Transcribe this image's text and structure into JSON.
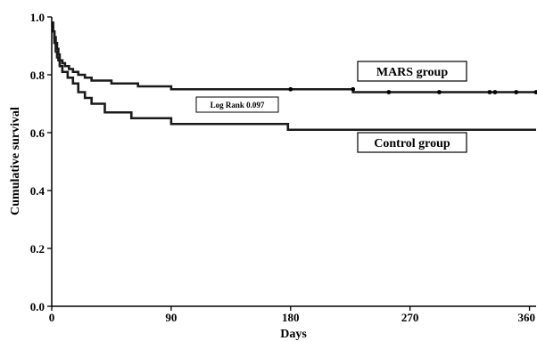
{
  "chart_data": {
    "type": "line",
    "subtype": "kaplan-meier-step",
    "xlabel": "Days",
    "ylabel": "Cumulative survival",
    "xlim": [
      0,
      365
    ],
    "ylim": [
      0,
      1.0
    ],
    "x_ticks": [
      0,
      90,
      180,
      270,
      360
    ],
    "y_ticks": [
      0.0,
      0.2,
      0.4,
      0.6,
      0.8,
      1.0
    ],
    "x_tick_labels": [
      "0",
      "90",
      "180",
      "270",
      "360"
    ],
    "y_tick_labels": [
      "0.0",
      "0.2",
      "0.4",
      "0.6",
      "0.8",
      "1.0"
    ],
    "grid": false,
    "annotation": "Log Rank 0.097",
    "series": [
      {
        "name": "MARS group",
        "color": "#1a1a1a",
        "x": [
          0,
          1,
          2,
          3,
          4,
          5,
          6,
          8,
          10,
          13,
          16,
          20,
          25,
          30,
          45,
          65,
          90,
          180,
          227,
          365
        ],
        "y": [
          0.98,
          0.95,
          0.93,
          0.91,
          0.89,
          0.87,
          0.85,
          0.84,
          0.83,
          0.82,
          0.81,
          0.8,
          0.79,
          0.78,
          0.77,
          0.76,
          0.75,
          0.75,
          0.74,
          0.74
        ],
        "censored_x": [
          180,
          227,
          254,
          292,
          330,
          334,
          350,
          365
        ],
        "censored_y": [
          0.75,
          0.75,
          0.74,
          0.74,
          0.74,
          0.74,
          0.74,
          0.74
        ]
      },
      {
        "name": "Control group",
        "color": "#1a1a1a",
        "x": [
          0,
          1,
          2,
          3,
          4,
          5,
          6,
          8,
          12,
          16,
          20,
          25,
          30,
          40,
          60,
          90,
          178,
          365
        ],
        "y": [
          0.98,
          0.95,
          0.91,
          0.88,
          0.86,
          0.85,
          0.83,
          0.81,
          0.79,
          0.77,
          0.74,
          0.72,
          0.7,
          0.67,
          0.65,
          0.63,
          0.61,
          0.61
        ]
      }
    ]
  }
}
